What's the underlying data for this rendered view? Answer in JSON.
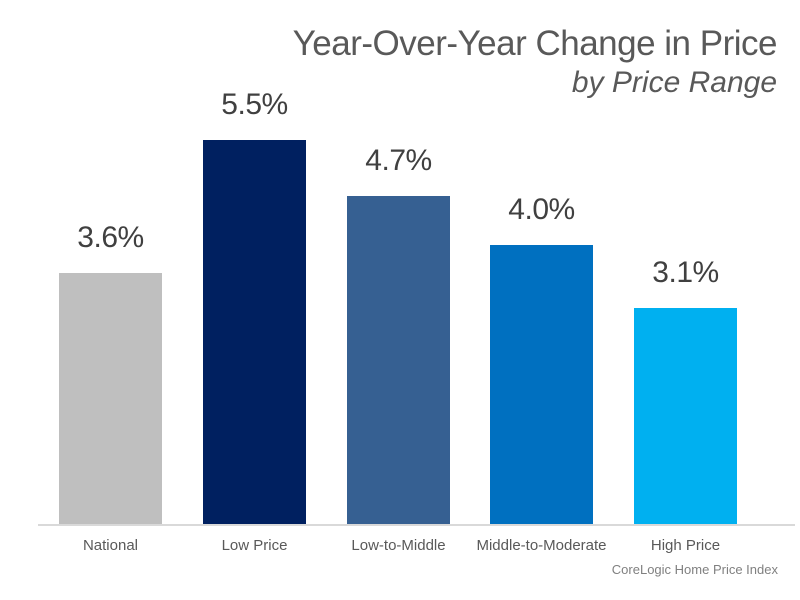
{
  "title": "Year-Over-Year Change in Price",
  "subtitle": "by Price Range",
  "source_note": "CoreLogic Home Price Index",
  "colors": {
    "background": "#ffffff",
    "title_text": "#595959",
    "value_label_text": "#404040",
    "category_label_text": "#595959",
    "source_text": "#808080",
    "axis_line": "#d9d9d9"
  },
  "chart_data": {
    "type": "bar",
    "title": "Year-Over-Year Change in Price",
    "subtitle": "by Price Range",
    "categories": [
      "National",
      "Low Price",
      "Low-to-Middle",
      "Middle-to-Moderate",
      "High Price"
    ],
    "values": [
      3.6,
      5.5,
      4.7,
      4.0,
      3.1
    ],
    "value_labels": [
      "3.6%",
      "5.5%",
      "4.7%",
      "4.0%",
      "3.1%"
    ],
    "bar_colors": [
      "#bfbfbf",
      "#002060",
      "#366092",
      "#0070c0",
      "#00b0f0"
    ],
    "xlabel": "",
    "ylabel": "",
    "ylim": [
      0,
      5.5
    ],
    "grid": false,
    "legend": false,
    "value_labels_position": "above-bars",
    "annotations": [
      "CoreLogic Home Price Index"
    ]
  }
}
